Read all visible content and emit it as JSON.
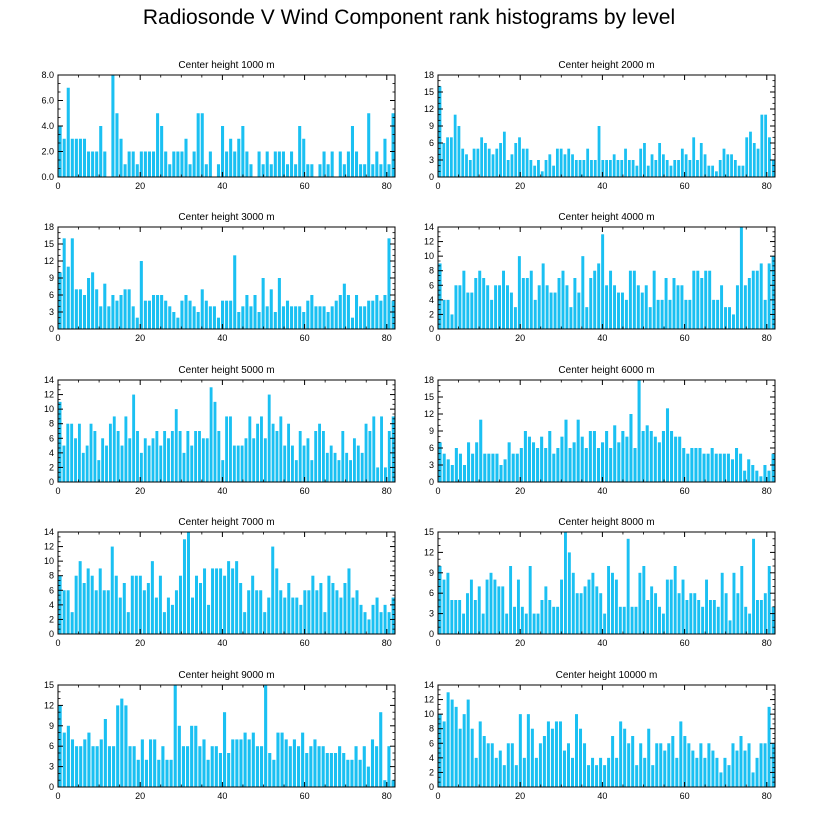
{
  "figure": {
    "title": "Radiosonde V Wind Component rank histograms by level",
    "bar_color": "#1ac0f2"
  },
  "chart_data": [
    {
      "type": "bar",
      "title": "Center height 1000 m",
      "xlim": [
        0,
        82
      ],
      "ylim": [
        0,
        8
      ],
      "xticks": [
        0,
        20,
        40,
        60,
        80
      ],
      "yticks": [
        0,
        2,
        4,
        6,
        8
      ],
      "ytick_labels": [
        "0.0",
        "2.0",
        "4.0",
        "6.0",
        "8.0"
      ],
      "values": [
        4,
        3,
        7,
        3,
        3,
        3,
        3,
        2,
        2,
        2,
        4,
        2,
        0,
        8,
        5,
        3,
        1,
        2,
        2,
        1,
        2,
        2,
        2,
        2,
        5,
        4,
        2,
        1,
        2,
        2,
        2,
        3,
        1,
        2,
        5,
        5,
        1,
        2,
        0,
        1,
        4,
        2,
        3,
        2,
        3,
        4,
        2,
        1,
        0,
        2,
        1,
        2,
        1,
        2,
        2,
        2,
        1,
        2,
        1,
        4,
        3,
        1,
        1,
        0,
        1,
        2,
        1,
        2,
        0,
        2,
        1,
        2,
        4,
        2,
        1,
        1,
        5,
        1,
        2,
        1,
        3,
        1,
        5
      ]
    },
    {
      "type": "bar",
      "title": "Center height 2000 m",
      "xlim": [
        0,
        82
      ],
      "ylim": [
        0,
        18
      ],
      "xticks": [
        0,
        20,
        40,
        60,
        80
      ],
      "yticks": [
        0,
        3,
        6,
        9,
        12,
        15,
        18
      ],
      "ytick_labels": [
        "0",
        "3",
        "6",
        "9",
        "12",
        "15",
        "18"
      ],
      "values": [
        16,
        6,
        7,
        7,
        11,
        9,
        5,
        4,
        3,
        5,
        5,
        7,
        6,
        5,
        4,
        5,
        6,
        8,
        3,
        4,
        6,
        7,
        5,
        5,
        3,
        2,
        3,
        1,
        3,
        4,
        2,
        5,
        5,
        4,
        5,
        4,
        3,
        3,
        3,
        5,
        3,
        3,
        9,
        3,
        3,
        3,
        4,
        3,
        3,
        5,
        3,
        3,
        2,
        5,
        6,
        2,
        4,
        3,
        6,
        4,
        3,
        2,
        3,
        3,
        5,
        4,
        3,
        7,
        3,
        6,
        4,
        2,
        2,
        1,
        3,
        5,
        4,
        4,
        3,
        2,
        2,
        7,
        8,
        6,
        5,
        11,
        11,
        7,
        3
      ]
    },
    {
      "type": "bar",
      "title": "Center height 3000 m",
      "xlim": [
        0,
        82
      ],
      "ylim": [
        0,
        18
      ],
      "xticks": [
        0,
        20,
        40,
        60,
        80
      ],
      "yticks": [
        0,
        3,
        6,
        9,
        12,
        15,
        18
      ],
      "ytick_labels": [
        "0",
        "3",
        "6",
        "9",
        "12",
        "15",
        "18"
      ],
      "values": [
        10,
        16,
        11,
        16,
        7,
        7,
        6,
        9,
        10,
        7,
        4,
        8,
        4,
        6,
        5,
        6,
        7,
        7,
        4,
        2,
        12,
        5,
        5,
        6,
        6,
        6,
        5,
        4,
        3,
        2,
        5,
        6,
        5,
        4,
        3,
        7,
        5,
        4,
        4,
        2,
        5,
        5,
        5,
        13,
        3,
        4,
        6,
        4,
        6,
        3,
        9,
        4,
        7,
        3,
        9,
        4,
        5,
        4,
        4,
        4,
        3,
        5,
        6,
        4,
        4,
        4,
        3,
        4,
        5,
        6,
        8,
        6,
        2,
        6,
        4,
        4,
        5,
        5,
        6,
        5,
        6,
        16,
        5
      ]
    },
    {
      "type": "bar",
      "title": "Center height 4000 m",
      "xlim": [
        0,
        82
      ],
      "ylim": [
        0,
        14
      ],
      "xticks": [
        0,
        20,
        40,
        60,
        80
      ],
      "yticks": [
        0,
        2,
        4,
        6,
        8,
        10,
        12,
        14
      ],
      "ytick_labels": [
        "0",
        "2",
        "4",
        "6",
        "8",
        "10",
        "12",
        "14"
      ],
      "values": [
        9,
        4,
        4,
        2,
        6,
        6,
        8,
        5,
        5,
        7,
        8,
        7,
        6,
        4,
        6,
        6,
        8,
        6,
        5,
        3,
        10,
        7,
        7,
        8,
        4,
        6,
        9,
        6,
        5,
        5,
        7,
        8,
        6,
        3,
        7,
        5,
        10,
        3,
        7,
        8,
        9,
        13,
        6,
        8,
        6,
        5,
        5,
        4,
        8,
        8,
        6,
        5,
        6,
        3,
        8,
        4,
        4,
        7,
        4,
        7,
        6,
        6,
        4,
        4,
        8,
        8,
        7,
        8,
        8,
        4,
        4,
        6,
        3,
        3,
        2,
        6,
        14,
        6,
        7,
        8,
        8,
        9,
        4,
        9,
        10
      ]
    },
    {
      "type": "bar",
      "title": "Center height 5000 m",
      "xlim": [
        0,
        82
      ],
      "ylim": [
        0,
        14
      ],
      "xticks": [
        0,
        20,
        40,
        60,
        80
      ],
      "yticks": [
        0,
        2,
        4,
        6,
        8,
        10,
        12,
        14
      ],
      "ytick_labels": [
        "0",
        "2",
        "4",
        "6",
        "8",
        "10",
        "12",
        "14"
      ],
      "values": [
        11,
        5,
        8,
        8,
        6,
        8,
        4,
        5,
        8,
        7,
        3,
        6,
        5,
        8,
        9,
        7,
        5,
        9,
        6,
        12,
        7,
        4,
        6,
        5,
        6,
        7,
        5,
        7,
        6,
        7,
        10,
        7,
        4,
        7,
        5,
        7,
        7,
        6,
        6,
        13,
        11,
        7,
        3,
        9,
        9,
        5,
        5,
        5,
        6,
        9,
        6,
        8,
        9,
        6,
        12,
        8,
        7,
        9,
        5,
        8,
        5,
        3,
        7,
        5,
        6,
        3,
        7,
        8,
        7,
        4,
        5,
        4,
        3,
        7,
        4,
        3,
        6,
        5,
        4,
        8,
        7,
        9,
        2,
        9,
        2,
        7,
        9
      ]
    },
    {
      "type": "bar",
      "title": "Center height 6000 m",
      "xlim": [
        0,
        82
      ],
      "ylim": [
        0,
        18
      ],
      "xticks": [
        0,
        20,
        40,
        60,
        80
      ],
      "yticks": [
        0,
        3,
        6,
        9,
        12,
        15,
        18
      ],
      "ytick_labels": [
        "0",
        "3",
        "6",
        "9",
        "12",
        "15",
        "18"
      ],
      "values": [
        7,
        5,
        4,
        3,
        6,
        5,
        3,
        7,
        5,
        7,
        11,
        5,
        5,
        5,
        5,
        3,
        4,
        7,
        5,
        5,
        6,
        9,
        8,
        7,
        6,
        8,
        6,
        9,
        5,
        6,
        8,
        11,
        6,
        7,
        11,
        8,
        6,
        9,
        9,
        6,
        7,
        9,
        6,
        10,
        7,
        9,
        8,
        12,
        6,
        18,
        9,
        10,
        9,
        8,
        7,
        9,
        13,
        9,
        8,
        8,
        6,
        5,
        6,
        6,
        6,
        5,
        5,
        6,
        5,
        5,
        5,
        5,
        4,
        6,
        5,
        2,
        4,
        3,
        2,
        1,
        3,
        2,
        5
      ]
    },
    {
      "type": "bar",
      "title": "Center height 7000 m",
      "xlim": [
        0,
        82
      ],
      "ylim": [
        0,
        14
      ],
      "xticks": [
        0,
        20,
        40,
        60,
        80
      ],
      "yticks": [
        0,
        2,
        4,
        6,
        8,
        10,
        12,
        14
      ],
      "ytick_labels": [
        "0",
        "2",
        "4",
        "6",
        "8",
        "10",
        "12",
        "14"
      ],
      "values": [
        8,
        6,
        6,
        3,
        8,
        10,
        7,
        9,
        8,
        6,
        9,
        6,
        6,
        12,
        8,
        5,
        7,
        3,
        8,
        8,
        8,
        6,
        7,
        10,
        5,
        8,
        3,
        5,
        4,
        6,
        8,
        13,
        14,
        5,
        8,
        7,
        9,
        4,
        9,
        9,
        9,
        8,
        10,
        9,
        10,
        7,
        3,
        6,
        8,
        6,
        6,
        3,
        5,
        12,
        9,
        6,
        5,
        7,
        5,
        5,
        4,
        6,
        6,
        8,
        6,
        7,
        3,
        8,
        7,
        6,
        5,
        7,
        9,
        5,
        6,
        4,
        3,
        2,
        4,
        5,
        3,
        4,
        3,
        5
      ]
    },
    {
      "type": "bar",
      "title": "Center height 8000 m",
      "xlim": [
        0,
        82
      ],
      "ylim": [
        0,
        15
      ],
      "xticks": [
        0,
        20,
        40,
        60,
        80
      ],
      "yticks": [
        0,
        3,
        6,
        9,
        12,
        15
      ],
      "ytick_labels": [
        "0",
        "3",
        "6",
        "9",
        "12",
        "15"
      ],
      "values": [
        10,
        8,
        9,
        5,
        5,
        5,
        3,
        6,
        8,
        5,
        7,
        3,
        8,
        9,
        8,
        7,
        7,
        3,
        10,
        4,
        8,
        4,
        3,
        10,
        3,
        3,
        5,
        7,
        5,
        4,
        4,
        8,
        15,
        12,
        9,
        6,
        6,
        7,
        8,
        9,
        7,
        6,
        3,
        10,
        9,
        8,
        4,
        4,
        14,
        4,
        4,
        9,
        10,
        5,
        7,
        6,
        4,
        3,
        8,
        8,
        10,
        6,
        8,
        5,
        6,
        6,
        5,
        4,
        8,
        5,
        5,
        4,
        9,
        6,
        2,
        9,
        6,
        10,
        4,
        3,
        14,
        5,
        5,
        6,
        10,
        4
      ]
    },
    {
      "type": "bar",
      "title": "Center height 9000 m",
      "xlim": [
        0,
        82
      ],
      "ylim": [
        0,
        15
      ],
      "xticks": [
        0,
        20,
        40,
        60,
        80
      ],
      "yticks": [
        0,
        3,
        6,
        9,
        12,
        15
      ],
      "ytick_labels": [
        "0",
        "3",
        "6",
        "9",
        "12",
        "15"
      ],
      "values": [
        12,
        8,
        9,
        7,
        6,
        6,
        7,
        8,
        6,
        6,
        7,
        10,
        6,
        6,
        12,
        13,
        12,
        6,
        6,
        4,
        7,
        4,
        7,
        7,
        4,
        6,
        4,
        4,
        15,
        9,
        6,
        6,
        9,
        9,
        6,
        7,
        4,
        6,
        6,
        5,
        11,
        5,
        7,
        7,
        7,
        8,
        7,
        8,
        6,
        6,
        15,
        5,
        4,
        8,
        8,
        7,
        6,
        7,
        6,
        8,
        5,
        6,
        7,
        6,
        6,
        5,
        5,
        5,
        6,
        5,
        4,
        4,
        6,
        4,
        6,
        3,
        7,
        6,
        11,
        1,
        6,
        1
      ]
    },
    {
      "type": "bar",
      "title": "Center height 10000 m",
      "xlim": [
        0,
        82
      ],
      "ylim": [
        0,
        14
      ],
      "xticks": [
        0,
        20,
        40,
        60,
        80
      ],
      "yticks": [
        0,
        2,
        4,
        6,
        8,
        10,
        12,
        14
      ],
      "ytick_labels": [
        "0",
        "2",
        "4",
        "6",
        "8",
        "10",
        "12",
        "14"
      ],
      "values": [
        10,
        9,
        13,
        12,
        11,
        8,
        10,
        12,
        8,
        4,
        9,
        7,
        6,
        6,
        4,
        5,
        3,
        6,
        6,
        3,
        10,
        4,
        10,
        8,
        4,
        6,
        7,
        9,
        8,
        9,
        9,
        5,
        6,
        4,
        10,
        8,
        6,
        3,
        4,
        3,
        4,
        3,
        4,
        7,
        4,
        9,
        8,
        6,
        7,
        3,
        6,
        4,
        8,
        3,
        6,
        6,
        5,
        6,
        7,
        4,
        9,
        7,
        6,
        5,
        4,
        6,
        4,
        6,
        5,
        4,
        2,
        4,
        3,
        6,
        5,
        7,
        5,
        6,
        2,
        4,
        6,
        6,
        11,
        6
      ]
    }
  ]
}
